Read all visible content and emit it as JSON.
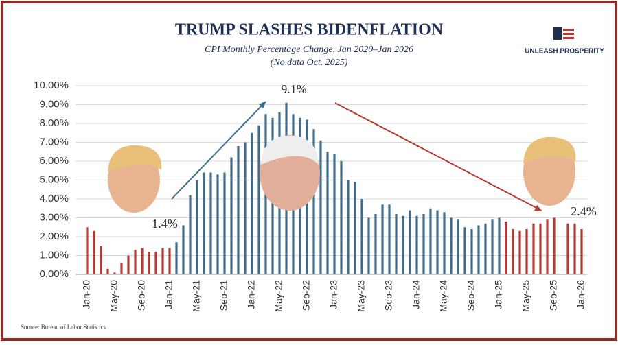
{
  "chart_data": {
    "type": "bar",
    "title": "TRUMP SLASHES BIDENFLATION",
    "subtitle": "CPI Monthly Percentage Change, Jan 2020–Jan 2026",
    "note": "(No data Oct. 2025)",
    "brand": "UNLEASH PROSPERITY",
    "source": "Source: Bureau of Labor Statistics",
    "annotations": [
      "1.4%",
      "9.1%",
      "2.4%"
    ],
    "categories": [
      "Jan-20",
      null,
      null,
      null,
      "May-20",
      null,
      null,
      null,
      "Sep-20",
      null,
      null,
      null,
      "Jan-21",
      null,
      null,
      null,
      "May-21",
      null,
      null,
      null,
      "Sep-21",
      null,
      null,
      null,
      "Jan-22",
      null,
      null,
      null,
      "May-22",
      null,
      null,
      null,
      "Sep-22",
      null,
      null,
      null,
      "Jan-23",
      null,
      null,
      null,
      "May-23",
      null,
      null,
      null,
      "Sep-23",
      null,
      null,
      null,
      "Jan-24",
      null,
      null,
      null,
      "May-24",
      null,
      null,
      null,
      "Sep-24",
      null,
      null,
      null,
      "Jan-25",
      null,
      null,
      null,
      "May-25",
      null,
      null,
      null,
      "Sep-25",
      null,
      null,
      null,
      "Jan-26"
    ],
    "values": [
      2.5,
      2.3,
      1.5,
      0.3,
      0.1,
      0.6,
      1.0,
      1.3,
      1.4,
      1.2,
      1.2,
      1.4,
      1.4,
      1.7,
      2.6,
      4.2,
      5.0,
      5.4,
      5.4,
      5.3,
      5.4,
      6.2,
      6.8,
      7.0,
      7.5,
      7.9,
      8.5,
      8.3,
      8.6,
      9.1,
      8.5,
      8.3,
      8.2,
      7.7,
      7.1,
      6.5,
      6.4,
      6.0,
      5.0,
      4.9,
      4.0,
      3.0,
      3.2,
      3.7,
      3.7,
      3.2,
      3.1,
      3.4,
      3.1,
      3.2,
      3.5,
      3.4,
      3.3,
      3.0,
      2.9,
      2.5,
      2.4,
      2.6,
      2.7,
      2.9,
      3.0,
      2.8,
      2.4,
      2.3,
      2.4,
      2.7,
      2.7,
      2.9,
      3.0,
      null,
      2.7,
      2.7,
      2.4
    ],
    "colors": [
      "#b83a32",
      "#b83a32",
      "#b83a32",
      "#b83a32",
      "#b83a32",
      "#b83a32",
      "#b83a32",
      "#b83a32",
      "#b83a32",
      "#b83a32",
      "#b83a32",
      "#b83a32",
      "#b83a32",
      "#3f6e8c",
      "#3f6e8c",
      "#3f6e8c",
      "#3f6e8c",
      "#3f6e8c",
      "#3f6e8c",
      "#3f6e8c",
      "#3f6e8c",
      "#3f6e8c",
      "#3f6e8c",
      "#3f6e8c",
      "#3f6e8c",
      "#3f6e8c",
      "#3f6e8c",
      "#3f6e8c",
      "#3f6e8c",
      "#3f6e8c",
      "#3f6e8c",
      "#3f6e8c",
      "#3f6e8c",
      "#3f6e8c",
      "#3f6e8c",
      "#3f6e8c",
      "#3f6e8c",
      "#3f6e8c",
      "#3f6e8c",
      "#3f6e8c",
      "#3f6e8c",
      "#3f6e8c",
      "#3f6e8c",
      "#3f6e8c",
      "#3f6e8c",
      "#3f6e8c",
      "#3f6e8c",
      "#3f6e8c",
      "#3f6e8c",
      "#3f6e8c",
      "#3f6e8c",
      "#3f6e8c",
      "#3f6e8c",
      "#3f6e8c",
      "#3f6e8c",
      "#3f6e8c",
      "#3f6e8c",
      "#3f6e8c",
      "#3f6e8c",
      "#3f6e8c",
      "#3f6e8c",
      "#b83a32",
      "#b83a32",
      "#b83a32",
      "#b83a32",
      "#b83a32",
      "#b83a32",
      "#b83a32",
      "#b83a32",
      "#b83a32",
      "#b83a32",
      "#b83a32",
      "#b83a32"
    ],
    "ylim": [
      0,
      10
    ],
    "yticks": [
      {
        "value": 0,
        "label": "0.00%"
      },
      {
        "value": 1,
        "label": "1.00%"
      },
      {
        "value": 2,
        "label": "2.00%"
      },
      {
        "value": 3,
        "label": "3.00%"
      },
      {
        "value": 4,
        "label": "4.00%"
      },
      {
        "value": 5,
        "label": "5.00%"
      },
      {
        "value": 6,
        "label": "6.00%"
      },
      {
        "value": 7,
        "label": "7.00%"
      },
      {
        "value": 8,
        "label": "8.00%"
      },
      {
        "value": 9,
        "label": "9.00%"
      },
      {
        "value": 10,
        "label": "10.00%"
      }
    ],
    "grid": true
  }
}
